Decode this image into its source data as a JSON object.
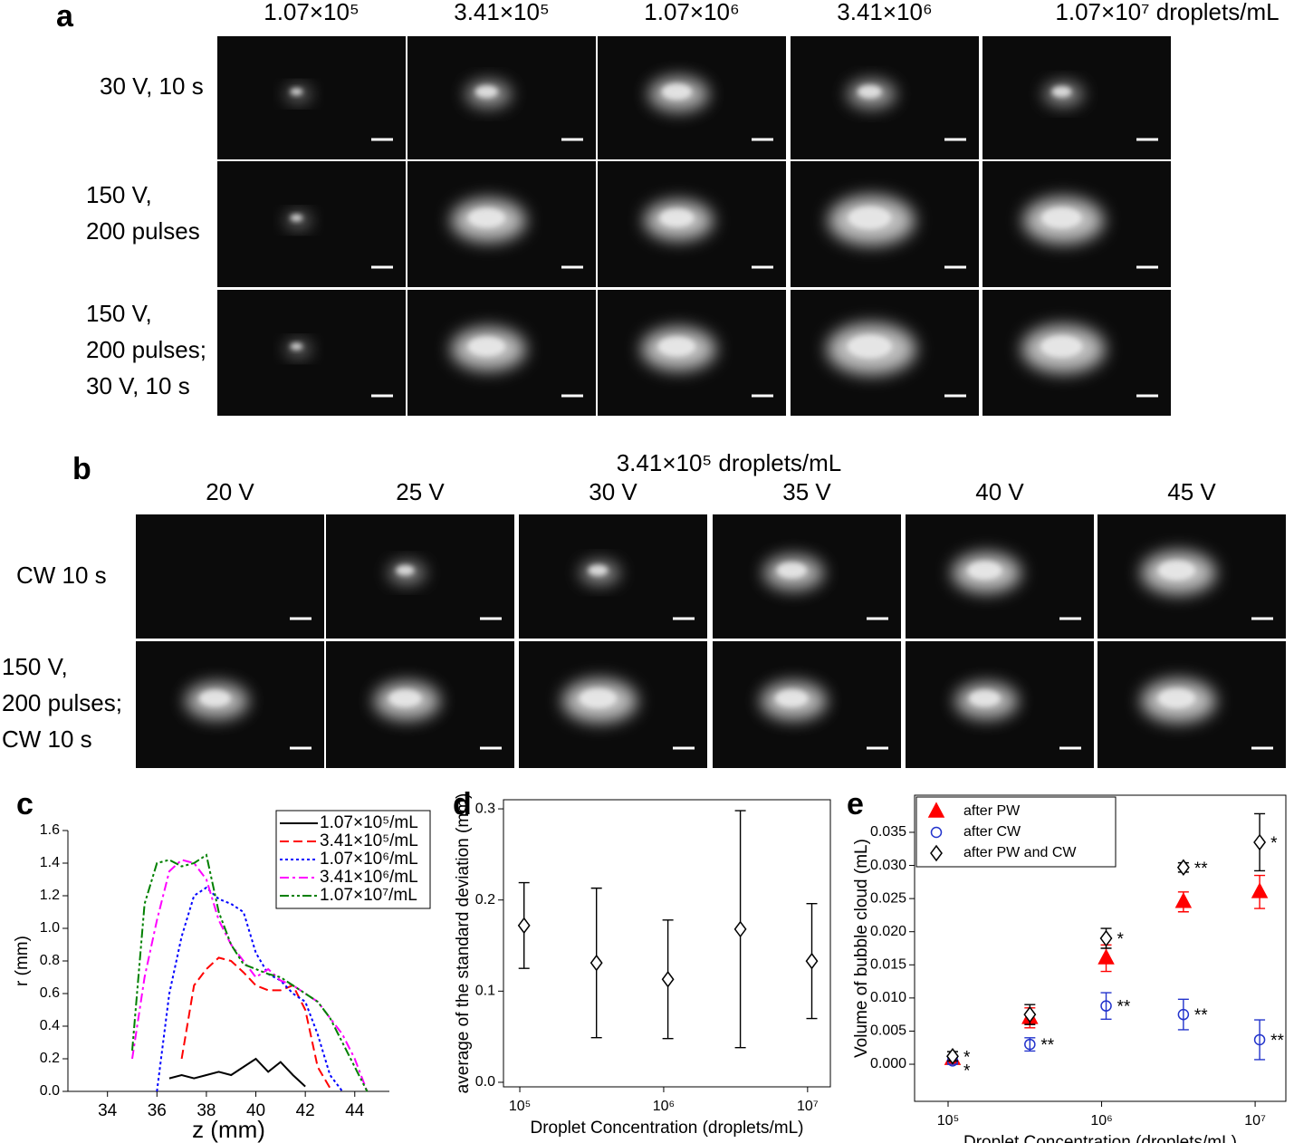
{
  "panel_a": {
    "label": "a",
    "columns": [
      "1.07×10⁵",
      "3.41×10⁵",
      "1.07×10⁶",
      "3.41×10⁶",
      "1.07×10⁷ droplets/mL"
    ],
    "rows": [
      [
        "30 V, 10 s"
      ],
      [
        "150 V,",
        "200 pulses"
      ],
      [
        "150 V,",
        "200 pulses;",
        "30 V, 10 s"
      ]
    ]
  },
  "panel_b": {
    "label": "b",
    "title": "3.41×10⁵ droplets/mL",
    "columns": [
      "20 V",
      "25 V",
      "30 V",
      "35 V",
      "40 V",
      "45 V"
    ],
    "rows": [
      [
        "CW 10 s"
      ],
      [
        "150 V,",
        "200 pulses;",
        "CW 10 s"
      ]
    ]
  },
  "chart_data": [
    {
      "type": "line",
      "panel": "c",
      "xlabel": "z (mm)",
      "ylabel": "r (mm)",
      "xlim": [
        32.4,
        45.4
      ],
      "ylim": [
        0,
        1.6
      ],
      "xticks": [
        34,
        36,
        38,
        40,
        42,
        44
      ],
      "yticks": [
        {
          "value": 0,
          "label": "0.0"
        },
        0.2,
        0.4,
        0.6,
        0.8,
        {
          "value": 1,
          "label": "1.0"
        },
        1.2,
        1.4,
        1.6
      ],
      "legend": "upper right",
      "x": [
        35,
        35.5,
        36,
        36.5,
        37,
        37.5,
        38,
        38.5,
        39,
        39.5,
        40,
        40.5,
        41,
        41.5,
        42,
        42.5,
        43,
        43.5,
        44,
        44.5
      ],
      "series": [
        {
          "name": "1.07×10⁵/mL",
          "color": "#000000",
          "style": "solid",
          "values": [
            null,
            null,
            null,
            0.08,
            0.1,
            0.08,
            0.1,
            0.12,
            0.1,
            0.15,
            0.2,
            0.12,
            0.18,
            0.1,
            0.03,
            null,
            null,
            null,
            null,
            null
          ]
        },
        {
          "name": "3.41×10⁵/mL",
          "color": "#ff0000",
          "style": "dash",
          "values": [
            null,
            null,
            null,
            null,
            0.2,
            0.65,
            0.75,
            0.82,
            0.8,
            0.73,
            0.65,
            0.62,
            0.62,
            0.65,
            0.5,
            0.15,
            0.02,
            null,
            null,
            null
          ]
        },
        {
          "name": "1.07×10⁶/mL",
          "color": "#0000ff",
          "style": "dot",
          "values": [
            null,
            null,
            0,
            0.6,
            0.95,
            1.2,
            1.25,
            1.18,
            1.15,
            1.1,
            0.85,
            0.72,
            0.68,
            0.6,
            0.55,
            0.35,
            0.1,
            0,
            null,
            null
          ]
        },
        {
          "name": "3.41×10⁶/mL",
          "color": "#ff00ff",
          "style": "dashdot",
          "values": [
            0.2,
            0.7,
            1.05,
            1.35,
            1.42,
            1.4,
            1.3,
            1.05,
            0.9,
            0.8,
            0.7,
            0.75,
            0.68,
            0.65,
            0.6,
            0.55,
            0.45,
            0.35,
            0.2,
            0
          ]
        },
        {
          "name": "1.07×10⁷/mL",
          "color": "#008000",
          "style": "dashdotdot",
          "values": [
            0.25,
            1.15,
            1.4,
            1.42,
            1.38,
            1.4,
            1.45,
            1.1,
            0.9,
            0.78,
            0.75,
            0.72,
            0.7,
            0.65,
            0.6,
            0.55,
            0.45,
            0.3,
            0.15,
            0
          ]
        }
      ]
    },
    {
      "type": "scatter",
      "panel": "d",
      "xlabel": "Droplet Concentration (droplets/mL)",
      "ylabel": "average of the standard deviation (mm)",
      "log_x": true,
      "xlim": [
        77000,
        14400000
      ],
      "ylim": [
        -0.005,
        0.31
      ],
      "xticks": [
        {
          "value": 100000,
          "label": "10⁵"
        },
        {
          "value": 1000000,
          "label": "10⁶"
        },
        {
          "value": 10000000,
          "label": "10⁷"
        }
      ],
      "yticks": [
        {
          "value": 0,
          "label": "0.0"
        },
        0.1,
        0.2,
        0.3
      ],
      "x": [
        107000,
        341000,
        1070000,
        3410000,
        10700000
      ],
      "series": [
        {
          "color": "#000000",
          "marker": "diamond",
          "values": [
            0.172,
            0.131,
            0.113,
            0.168,
            0.133
          ],
          "errors": [
            0.047,
            0.082,
            0.065,
            0.13,
            0.063
          ]
        }
      ]
    },
    {
      "type": "scatter",
      "panel": "e",
      "xlabel": "Droplet Concentration (droplets/mL)",
      "ylabel": "Volume of bubble cloud (mL)",
      "log_x": true,
      "legend": "upper left",
      "xlim": [
        60500,
        15850000
      ],
      "ylim": [
        -0.0056,
        0.0406
      ],
      "xticks": [
        {
          "value": 100000,
          "label": "10⁵"
        },
        {
          "value": 1000000,
          "label": "10⁶"
        },
        {
          "value": 10000000,
          "label": "10⁷"
        }
      ],
      "yticks": [
        {
          "value": 0,
          "label": "0.000"
        },
        {
          "value": 0.005,
          "label": "0.005"
        },
        {
          "value": 0.01,
          "label": "0.010"
        },
        {
          "value": 0.015,
          "label": "0.015"
        },
        {
          "value": 0.02,
          "label": "0.020"
        },
        {
          "value": 0.025,
          "label": "0.025"
        },
        {
          "value": 0.03,
          "label": "0.030"
        },
        {
          "value": 0.035,
          "label": "0.035"
        }
      ],
      "x": [
        107000,
        341000,
        1070000,
        3410000,
        10700000
      ],
      "series": [
        {
          "name": "after PW",
          "color": "#ff0000",
          "marker": "triangle",
          "values": [
            0.0008,
            0.007,
            0.016,
            0.0245,
            0.026
          ],
          "errors": [
            0.0005,
            0.0015,
            0.002,
            0.0015,
            0.0025
          ]
        },
        {
          "name": "after CW",
          "color": "#2233cc",
          "marker": "circle",
          "values": [
            0.0005,
            0.003,
            0.0088,
            0.0075,
            0.0037
          ],
          "errors": [
            0.0005,
            0.001,
            0.002,
            0.0023,
            0.003
          ],
          "annotations": [
            "*",
            "**",
            "**",
            "**",
            "**"
          ]
        },
        {
          "name": "after PW and CW",
          "color": "#000000",
          "marker": "diamond",
          "values": [
            0.0012,
            0.0075,
            0.019,
            0.0297,
            0.0335
          ],
          "errors": [
            0.0007,
            0.0015,
            0.0015,
            0.0007,
            0.0043
          ],
          "annotations": [
            "*",
            null,
            "*",
            "**",
            "*"
          ]
        }
      ]
    }
  ]
}
